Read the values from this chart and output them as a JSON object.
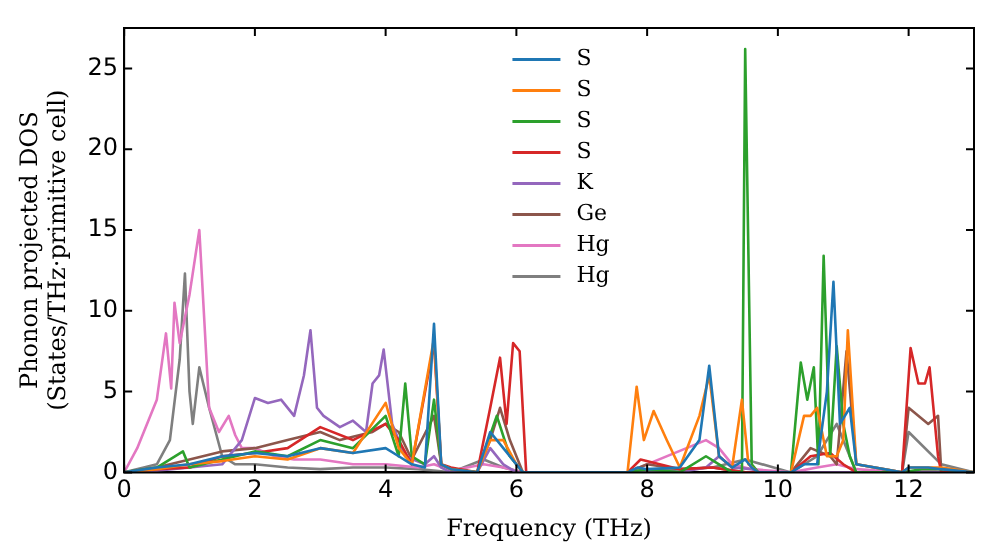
{
  "chart_data": {
    "type": "line",
    "xlabel": "Frequency (THz)",
    "ylabel": "Phonon projected DOS\n(States/THz·primitive cell)",
    "xlim": [
      0,
      13
    ],
    "ylim": [
      0,
      27.5
    ],
    "xticks": [
      0,
      2,
      4,
      6,
      8,
      10,
      12
    ],
    "yticks": [
      0,
      5,
      10,
      15,
      20,
      25
    ],
    "grid": false,
    "legend": "top",
    "marker": "none",
    "line_style": "solid",
    "series": [
      {
        "name": "S",
        "color": "#1f77b4",
        "x": [
          0,
          0.5,
          1,
          1.5,
          2,
          2.5,
          3,
          3.5,
          4,
          4.2,
          4.4,
          4.6,
          4.74,
          4.85,
          5,
          5.4,
          5.6,
          5.8,
          6,
          6.1,
          7.7,
          7.85,
          8,
          8.5,
          8.8,
          8.95,
          9.1,
          9.3,
          9.5,
          9.6,
          9.7,
          10.2,
          10.4,
          10.6,
          10.75,
          10.85,
          10.95,
          11.1,
          11.2,
          11.9,
          12,
          12.3,
          12.5,
          13
        ],
        "values": [
          0,
          0.3,
          0.5,
          1,
          1.2,
          1.0,
          1.5,
          1.2,
          1.5,
          1.0,
          0.5,
          0.3,
          9.2,
          0.5,
          0.2,
          0,
          2.5,
          1.5,
          0.5,
          0,
          0,
          0.3,
          0.2,
          0.3,
          2,
          6.6,
          1,
          0.3,
          0.8,
          0.3,
          0,
          0,
          0.5,
          0.5,
          5,
          11.8,
          3,
          4,
          0.5,
          0,
          0.3,
          0.3,
          0.2,
          0
        ]
      },
      {
        "name": "S",
        "color": "#ff7f0e",
        "x": [
          0,
          0.5,
          1,
          1.5,
          2,
          2.5,
          3,
          3.5,
          4,
          4.2,
          4.4,
          4.74,
          4.85,
          5,
          5.4,
          5.6,
          5.8,
          6,
          6.1,
          7.7,
          7.84,
          7.95,
          8.1,
          8.3,
          8.5,
          8.8,
          8.95,
          9.1,
          9.3,
          9.45,
          9.55,
          9.7,
          10.2,
          10.4,
          10.5,
          10.6,
          10.75,
          10.9,
          11.0,
          11.07,
          11.2,
          11.9,
          12,
          12.5,
          13
        ],
        "values": [
          0,
          0.2,
          0.5,
          0.7,
          1,
          0.8,
          1.5,
          1.2,
          4.3,
          1.5,
          0.5,
          8.3,
          0.5,
          0.2,
          0,
          2,
          2,
          0.5,
          0,
          0,
          5.3,
          2,
          3.8,
          2,
          0.3,
          3.5,
          6,
          1,
          0.3,
          4.5,
          0.5,
          0,
          0,
          3.5,
          3.5,
          4,
          1,
          1,
          2,
          8.8,
          0.5,
          0,
          0.3,
          0.3,
          0
        ]
      },
      {
        "name": "S",
        "color": "#2ca02c",
        "x": [
          0,
          0.5,
          0.9,
          1.0,
          1.5,
          2,
          2.5,
          3,
          3.5,
          4,
          4.2,
          4.3,
          4.4,
          4.6,
          4.74,
          4.85,
          5,
          5.4,
          5.7,
          5.9,
          6.1,
          7.7,
          8,
          8.5,
          8.9,
          9.1,
          9.3,
          9.45,
          9.5,
          9.6,
          9.7,
          10.2,
          10.35,
          10.45,
          10.55,
          10.62,
          10.7,
          10.8,
          10.9,
          11.0,
          11.1,
          11.2,
          11.9,
          12.2,
          12.5,
          13
        ],
        "values": [
          0,
          0.3,
          1.3,
          0.3,
          0.8,
          1.3,
          1,
          2,
          1.5,
          3.5,
          1,
          5.5,
          1,
          0.5,
          4.5,
          0.5,
          0.2,
          0,
          3.5,
          1,
          0,
          0,
          0.2,
          0,
          1,
          0.5,
          0,
          0,
          26.2,
          0.5,
          0,
          0,
          6.8,
          4.5,
          6.5,
          0.5,
          13.4,
          1,
          7.8,
          3,
          1,
          0,
          0,
          0.2,
          0.2,
          0
        ]
      },
      {
        "name": "S",
        "color": "#d62728",
        "x": [
          0,
          0.5,
          1,
          1.5,
          2,
          2.5,
          3,
          3.5,
          4,
          4.2,
          4.4,
          4.74,
          4.85,
          5,
          5.4,
          5.6,
          5.75,
          5.85,
          5.95,
          6.05,
          6.15,
          7.7,
          7.9,
          8.5,
          9,
          9.5,
          10.2,
          10.5,
          10.8,
          11,
          11.2,
          11.9,
          12.03,
          12.15,
          12.25,
          12.32,
          12.45,
          12.5,
          13
        ],
        "values": [
          0,
          0.2,
          0.3,
          1,
          1.2,
          1.5,
          2.8,
          2,
          3,
          2,
          0.5,
          8,
          0.5,
          0.3,
          0,
          4,
          7.1,
          3,
          8,
          7.5,
          0,
          0,
          0.8,
          0.2,
          0.3,
          0,
          0,
          1,
          1.2,
          0.5,
          0,
          0,
          7.7,
          5.5,
          5.5,
          6.5,
          1,
          0,
          0
        ]
      },
      {
        "name": "K",
        "color": "#9467bd",
        "x": [
          0,
          0.5,
          1,
          1.5,
          1.8,
          2,
          2.2,
          2.4,
          2.6,
          2.75,
          2.85,
          2.95,
          3.05,
          3.3,
          3.5,
          3.7,
          3.8,
          3.9,
          3.97,
          4.1,
          4.3,
          4.6,
          4.74,
          4.85,
          5,
          5.4,
          5.6,
          5.8,
          6,
          6.1,
          7.7,
          8,
          8.5,
          8.9,
          9.1,
          9.3,
          9.6,
          9.7,
          13
        ],
        "values": [
          0,
          0.1,
          0.3,
          0.5,
          2,
          4.6,
          4.3,
          4.5,
          3.5,
          6,
          8.8,
          4,
          3.5,
          2.8,
          3.2,
          2.5,
          5.5,
          6,
          7.6,
          3,
          1,
          0.5,
          1,
          0.3,
          0,
          0,
          1.5,
          0.5,
          0,
          0,
          0,
          0.2,
          0,
          0.3,
          1,
          0.3,
          0.2,
          0,
          0
        ]
      },
      {
        "name": "Ge",
        "color": "#8c564b",
        "x": [
          0,
          0.5,
          1,
          1.5,
          2,
          2.5,
          3,
          3.3,
          3.5,
          3.8,
          4,
          4.2,
          4.4,
          4.74,
          4.85,
          5,
          5.4,
          5.6,
          5.75,
          5.9,
          6.1,
          7.7,
          8,
          8.5,
          9,
          9.5,
          10.2,
          10.5,
          10.8,
          10.9,
          11.05,
          11.2,
          11.9,
          12,
          12.3,
          12.45,
          12.5,
          13
        ],
        "values": [
          0,
          0.3,
          0.8,
          1.3,
          1.5,
          2,
          2.5,
          2,
          2.2,
          2.5,
          3,
          2.5,
          0.8,
          3.5,
          0.5,
          0.2,
          0,
          2,
          4,
          2,
          0,
          0,
          0.5,
          0.2,
          0.3,
          0,
          0,
          1.5,
          1,
          0.5,
          7.5,
          0.5,
          0,
          4,
          3,
          3.5,
          0,
          0
        ]
      },
      {
        "name": "Hg",
        "color": "#e377c2",
        "x": [
          0,
          0.2,
          0.35,
          0.5,
          0.64,
          0.72,
          0.77,
          0.85,
          1.0,
          1.15,
          1.3,
          1.45,
          1.6,
          1.7,
          1.8,
          2,
          2.3,
          2.6,
          3,
          3.5,
          4,
          4.5,
          4.74,
          5,
          5.5,
          5.8,
          6.1,
          7.7,
          8.9,
          9.1,
          9.3,
          9.6,
          10.2,
          10.6,
          10.9,
          11.2,
          11.9,
          12.5,
          13
        ],
        "values": [
          0,
          1.5,
          3,
          4.5,
          8.6,
          5.2,
          10.5,
          8,
          11,
          15,
          4,
          2.5,
          3.5,
          2.3,
          1.5,
          1.5,
          1,
          0.8,
          0.8,
          0.5,
          0.5,
          0.3,
          0.5,
          0.1,
          0.5,
          0.3,
          0,
          0,
          2.0,
          1.5,
          0.5,
          0.2,
          0,
          0.3,
          0.5,
          0.2,
          0,
          0.2,
          0
        ]
      },
      {
        "name": "Hg",
        "color": "#7f7f7f",
        "x": [
          0,
          0.3,
          0.5,
          0.7,
          0.85,
          0.93,
          1.0,
          1.05,
          1.15,
          1.3,
          1.5,
          1.7,
          2,
          2.5,
          3,
          3.5,
          4,
          4.5,
          5,
          5.5,
          5.8,
          6.1,
          7.7,
          9,
          9.5,
          10.2,
          10.6,
          10.9,
          11.2,
          11.9,
          12,
          12.5,
          13
        ],
        "values": [
          0,
          0.3,
          0.5,
          2,
          7,
          12.3,
          5,
          3,
          6.5,
          4,
          1,
          0.5,
          0.5,
          0.3,
          0.2,
          0.3,
          0.3,
          0.2,
          0,
          0.8,
          0.3,
          0,
          0,
          0.3,
          0.8,
          0,
          1,
          3,
          0,
          0,
          2.5,
          0.5,
          0
        ]
      }
    ]
  }
}
